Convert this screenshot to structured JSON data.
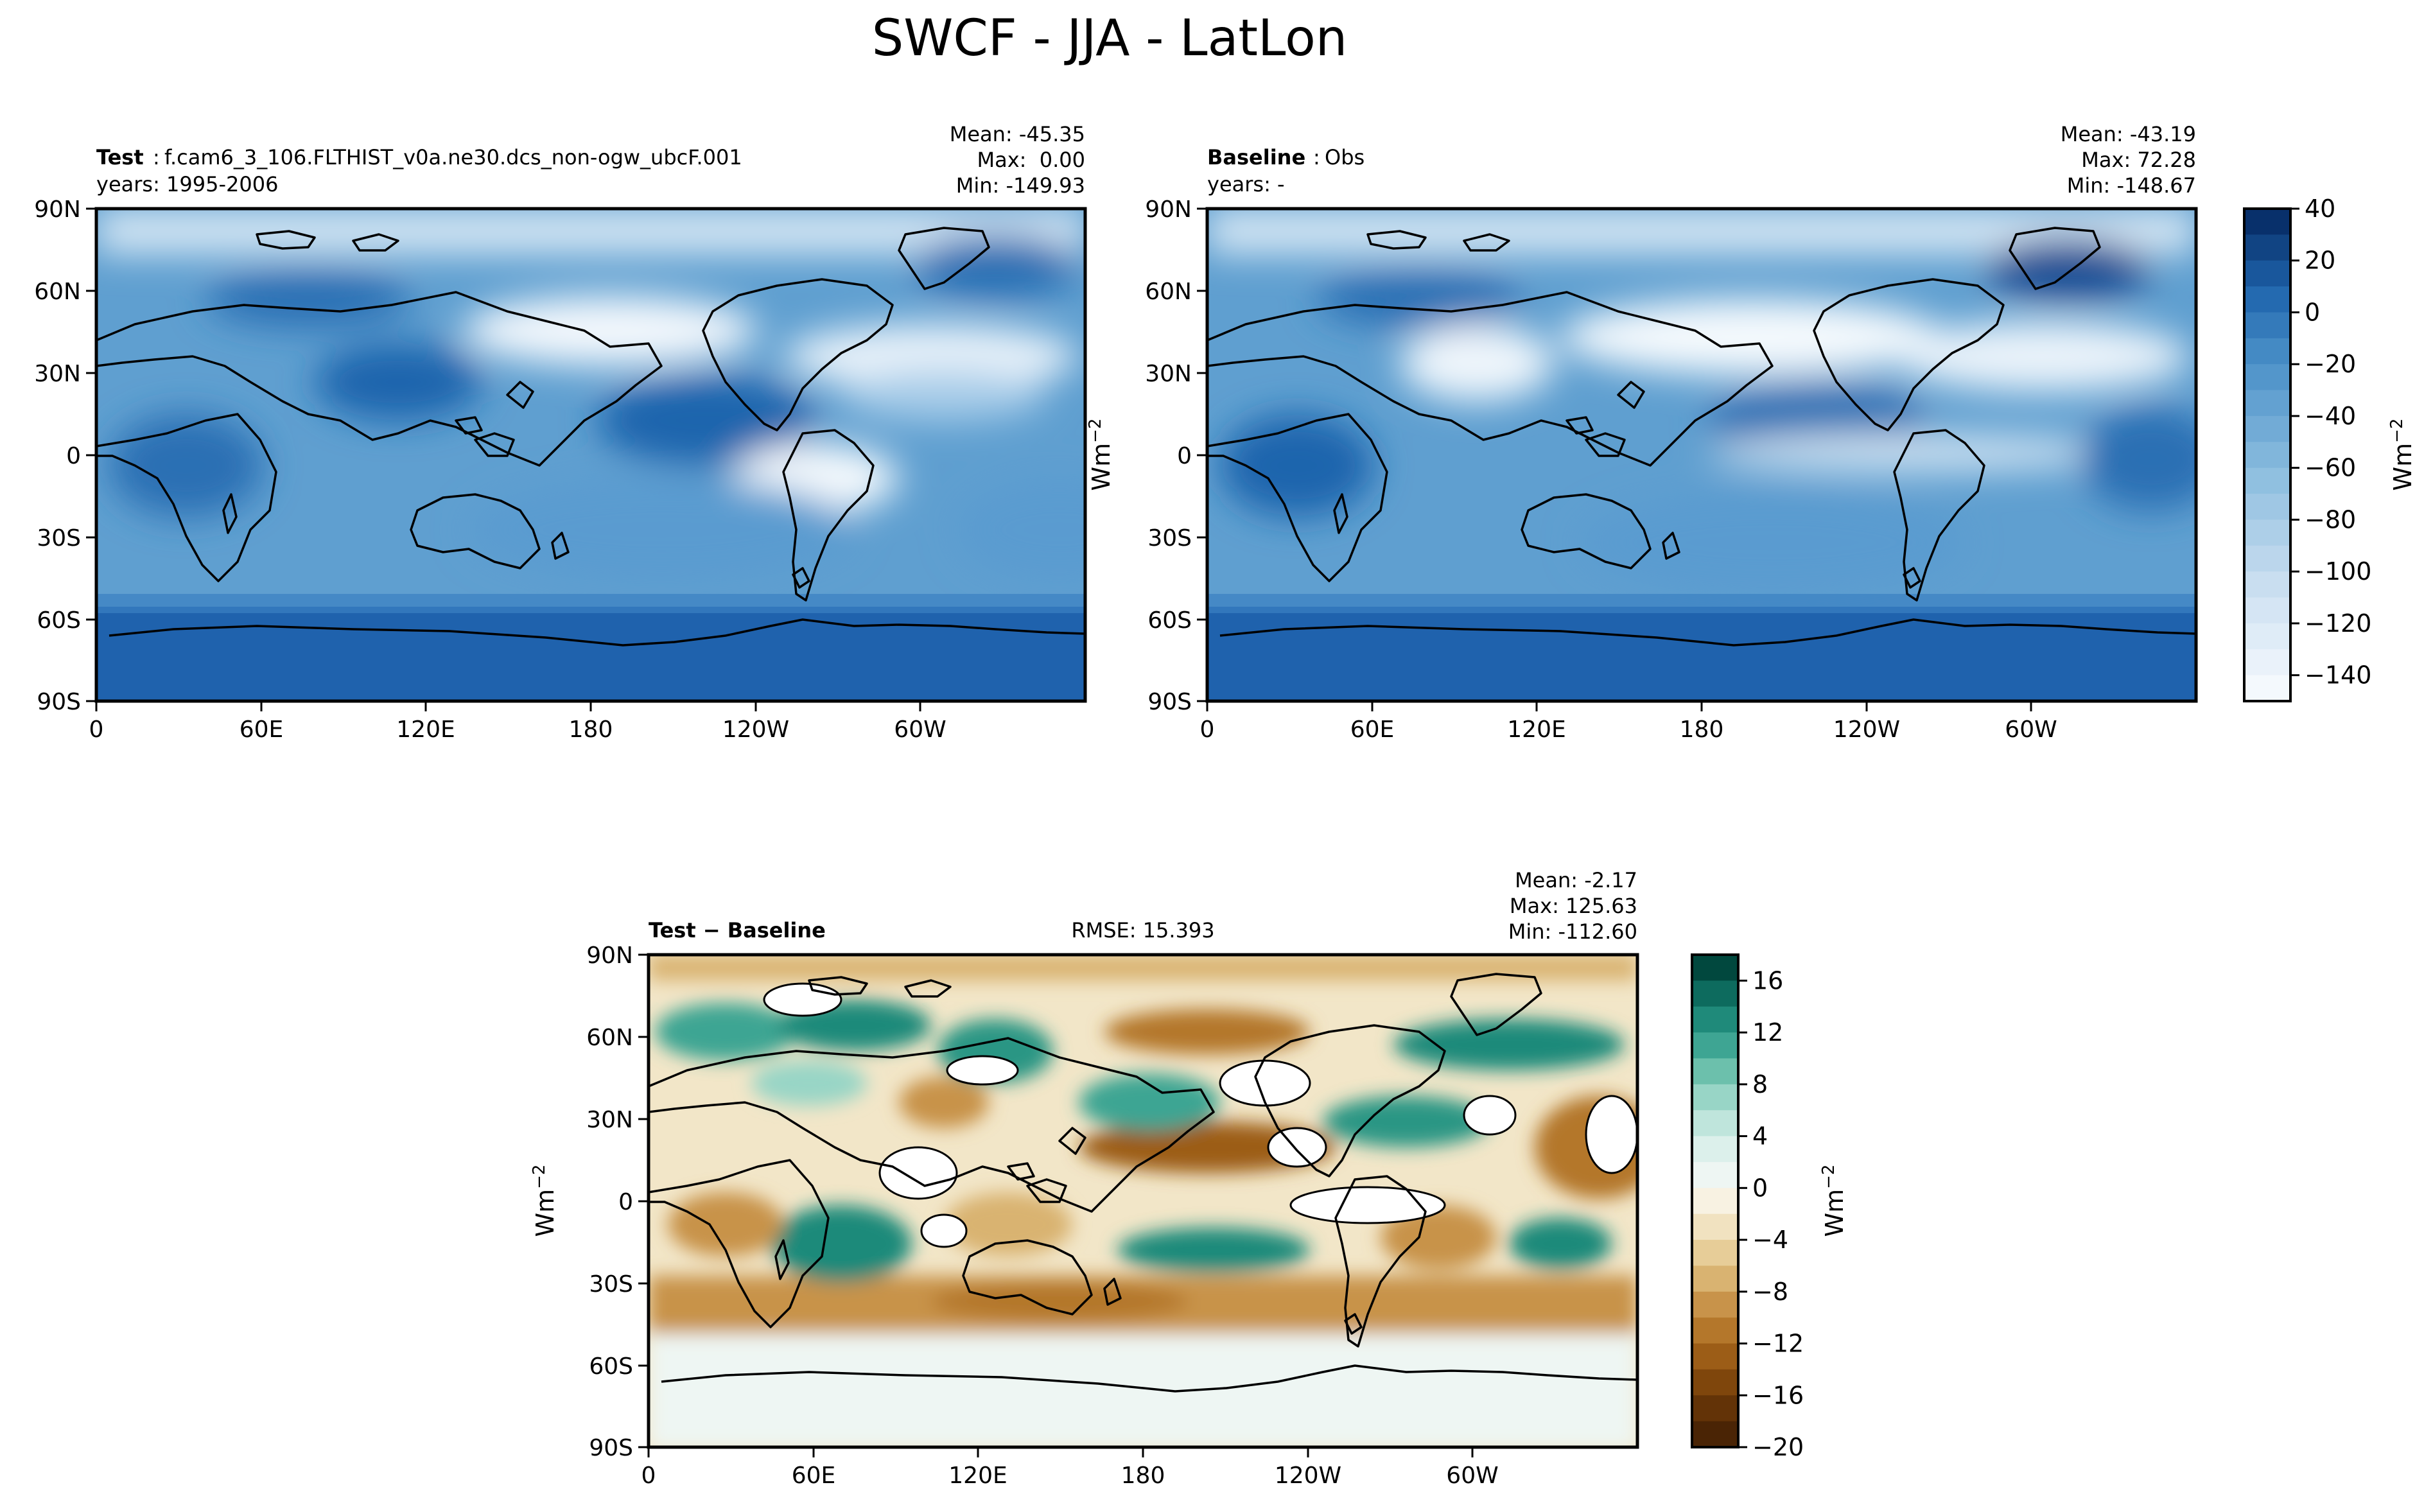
{
  "figure": {
    "title": "SWCF - JJA - LatLon"
  },
  "lat_ticks": [
    "90N",
    "60N",
    "30N",
    "0",
    "30S",
    "60S",
    "90S"
  ],
  "lon_ticks": [
    "0",
    "60E",
    "120E",
    "180",
    "120W",
    "60W"
  ],
  "chart_data": [
    {
      "type": "heatmap",
      "panel": "test",
      "title_label": "Test",
      "title_sep": ":",
      "title_value": "f.cam6_3_106.FLTHIST_v0a.ne30.dcs_non-ogw_ubcF.001",
      "years": "years: 1995-2006",
      "stats": {
        "mean": "Mean: -45.35",
        "max": "Max:  0.00",
        "min": "Min: -149.93"
      },
      "colormap": "Blues_r",
      "vmin": -150,
      "vmax": 40
    },
    {
      "type": "heatmap",
      "panel": "baseline",
      "title_label": "Baseline",
      "title_sep": ":",
      "title_value": "Obs",
      "years": "years: -",
      "stats": {
        "mean": "Mean: -43.19",
        "max": "Max: 72.28",
        "min": "Min: -148.67"
      },
      "colormap": "Blues_r",
      "vmin": -150,
      "vmax": 40,
      "colorbar": {
        "label": "Wm",
        "label_sup": "−2",
        "ticks": [
          40,
          20,
          0,
          -20,
          -40,
          -60,
          -80,
          -100,
          -120,
          -140
        ],
        "tick_labels": [
          "40",
          "20",
          "0",
          "−20",
          "−40",
          "−60",
          "−80",
          "−100",
          "−120",
          "−140"
        ],
        "levels": 19,
        "color_low": "#f4f9fd",
        "color_high": "#08306b"
      }
    },
    {
      "type": "heatmap",
      "panel": "difference",
      "title_label": "Test − Baseline",
      "rmse": "RMSE: 15.393",
      "stats": {
        "mean": "Mean: -2.17",
        "max": "Max: 125.63",
        "min": "Min: -112.60"
      },
      "colormap": "BrBG",
      "vmin": -20,
      "vmax": 18,
      "colorbar": {
        "label": "Wm",
        "label_sup": "−2",
        "ticks": [
          16,
          12,
          8,
          4,
          0,
          -4,
          -8,
          -12,
          -16,
          -20
        ],
        "tick_labels": [
          "16",
          "12",
          "8",
          "4",
          "0",
          "−4",
          "−8",
          "−12",
          "−16",
          "−20"
        ],
        "colors_top_to_bottom": [
          "#01483e",
          "#0d6b5e",
          "#1f8a7a",
          "#3ea593",
          "#6cc0ac",
          "#98d5c6",
          "#bfe5dc",
          "#dcf0eb",
          "#eef6f3",
          "#f8f2e2",
          "#f1e2c0",
          "#e7cd98",
          "#d9b371",
          "#c8934a",
          "#b4772b",
          "#9c5d17",
          "#7f460c",
          "#633307",
          "#4a2405"
        ]
      }
    }
  ],
  "axis_label": {
    "text": "Wm",
    "sup": "−2"
  }
}
